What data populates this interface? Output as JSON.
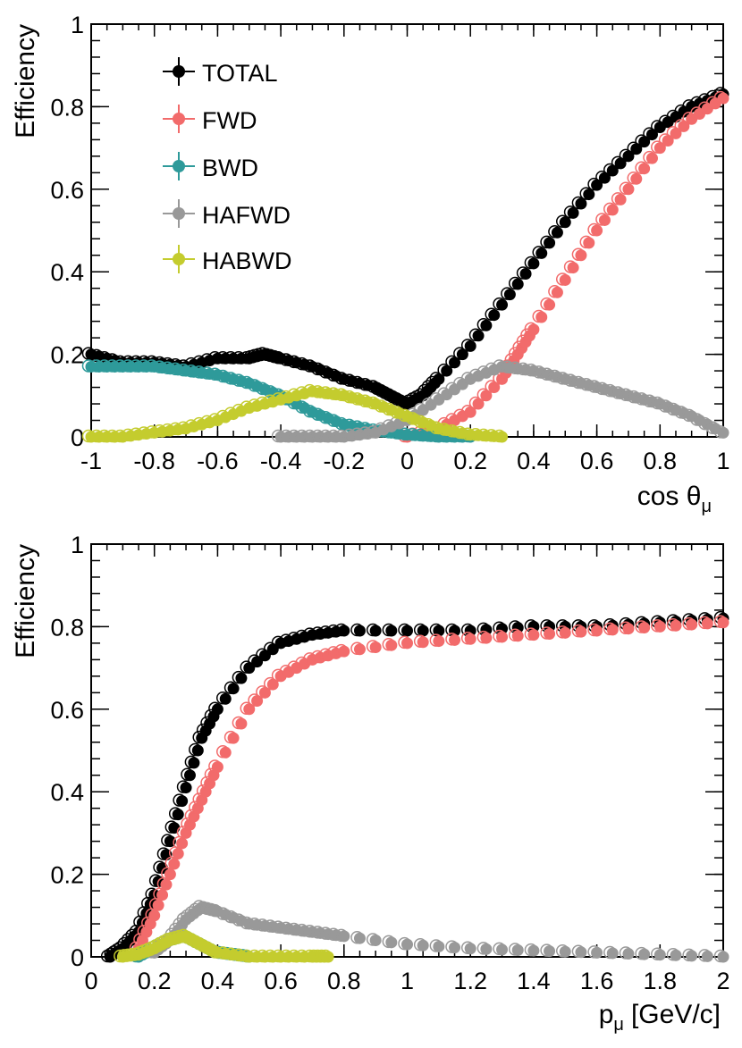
{
  "figure": {
    "colors": {
      "TOTAL": "#000000",
      "FWD": "#f26b6b",
      "BWD": "#2e9a9a",
      "HAFWD": "#999999",
      "HABWD": "#c4cc2e"
    }
  },
  "chart_data": [
    {
      "type": "scatter",
      "name": "efficiency-vs-cos-theta",
      "title": "",
      "xlabel_main": "cos θ",
      "xlabel_sub": "μ",
      "ylabel": "Efficiency",
      "xlim": [
        -1,
        1
      ],
      "ylim": [
        0,
        1
      ],
      "xticks": [
        -1,
        -0.8,
        -0.6,
        -0.4,
        -0.2,
        0,
        0.2,
        0.4,
        0.6,
        0.8,
        1
      ],
      "xtick_labels": [
        "-1",
        "-0.8",
        "-0.6",
        "-0.4",
        "-0.2",
        "0",
        "0.2",
        "0.4",
        "0.6",
        "0.8",
        "1"
      ],
      "yticks": [
        0,
        0.2,
        0.4,
        0.6,
        0.8,
        1
      ],
      "ytick_labels": [
        "0",
        "0.2",
        "0.4",
        "0.6",
        "0.8",
        "1"
      ],
      "legend_position": "top-left",
      "legend": [
        "TOTAL",
        "FWD",
        "BWD",
        "HAFWD",
        "HABWD"
      ],
      "series": [
        {
          "name": "TOTAL",
          "x": [
            -1.0,
            -0.9,
            -0.8,
            -0.7,
            -0.6,
            -0.5,
            -0.45,
            -0.4,
            -0.3,
            -0.2,
            -0.1,
            -0.05,
            0.0,
            0.05,
            0.1,
            0.2,
            0.3,
            0.4,
            0.5,
            0.6,
            0.7,
            0.8,
            0.9,
            1.0
          ],
          "y": [
            0.2,
            0.18,
            0.18,
            0.17,
            0.19,
            0.19,
            0.2,
            0.19,
            0.17,
            0.14,
            0.12,
            0.1,
            0.08,
            0.1,
            0.14,
            0.22,
            0.32,
            0.42,
            0.52,
            0.61,
            0.68,
            0.75,
            0.8,
            0.83
          ]
        },
        {
          "name": "FWD",
          "x": [
            0.0,
            0.1,
            0.2,
            0.3,
            0.35,
            0.4,
            0.5,
            0.6,
            0.7,
            0.8,
            0.9,
            1.0
          ],
          "y": [
            0.0,
            0.02,
            0.06,
            0.14,
            0.2,
            0.26,
            0.38,
            0.5,
            0.6,
            0.7,
            0.77,
            0.82
          ]
        },
        {
          "name": "BWD",
          "x": [
            -1.0,
            -0.9,
            -0.8,
            -0.7,
            -0.6,
            -0.5,
            -0.4,
            -0.3,
            -0.2,
            -0.1,
            0.0,
            0.1,
            0.2
          ],
          "y": [
            0.17,
            0.17,
            0.17,
            0.16,
            0.15,
            0.13,
            0.1,
            0.06,
            0.03,
            0.015,
            0.005,
            0.0,
            0.0
          ]
        },
        {
          "name": "HAFWD",
          "x": [
            -0.4,
            -0.3,
            -0.2,
            -0.1,
            0.0,
            0.1,
            0.2,
            0.3,
            0.4,
            0.5,
            0.6,
            0.7,
            0.8,
            0.9,
            1.0
          ],
          "y": [
            0.0,
            0.0,
            0.0,
            0.01,
            0.04,
            0.09,
            0.14,
            0.17,
            0.16,
            0.14,
            0.12,
            0.1,
            0.08,
            0.05,
            0.01
          ]
        },
        {
          "name": "HABWD",
          "x": [
            -1.0,
            -0.9,
            -0.8,
            -0.7,
            -0.6,
            -0.5,
            -0.4,
            -0.3,
            -0.2,
            -0.1,
            0.0,
            0.1,
            0.2,
            0.3
          ],
          "y": [
            0.0,
            0.0,
            0.01,
            0.02,
            0.04,
            0.07,
            0.09,
            0.11,
            0.1,
            0.08,
            0.05,
            0.02,
            0.005,
            0.0
          ]
        }
      ]
    },
    {
      "type": "scatter",
      "name": "efficiency-vs-momentum",
      "title": "",
      "xlabel_main": "p",
      "xlabel_sub": "μ",
      "xlabel_unit": "[GeV/c]",
      "ylabel": "Efficiency",
      "xlim": [
        0,
        2
      ],
      "ylim": [
        0,
        1
      ],
      "xticks": [
        0,
        0.2,
        0.4,
        0.6,
        0.8,
        1,
        1.2,
        1.4,
        1.6,
        1.8,
        2
      ],
      "xtick_labels": [
        "0",
        "0.2",
        "0.4",
        "0.6",
        "0.8",
        "1",
        "1.2",
        "1.4",
        "1.6",
        "1.8",
        "2"
      ],
      "yticks": [
        0,
        0.2,
        0.4,
        0.6,
        0.8,
        1
      ],
      "ytick_labels": [
        "0",
        "0.2",
        "0.4",
        "0.6",
        "0.8",
        "1"
      ],
      "series": [
        {
          "name": "TOTAL",
          "x": [
            0.06,
            0.1,
            0.15,
            0.2,
            0.25,
            0.3,
            0.35,
            0.4,
            0.5,
            0.6,
            0.7,
            0.8,
            1.0,
            1.2,
            1.4,
            1.6,
            1.8,
            2.0
          ],
          "y": [
            0.0,
            0.02,
            0.06,
            0.15,
            0.28,
            0.41,
            0.53,
            0.6,
            0.7,
            0.76,
            0.78,
            0.79,
            0.79,
            0.79,
            0.8,
            0.8,
            0.81,
            0.82
          ]
        },
        {
          "name": "FWD",
          "x": [
            0.15,
            0.2,
            0.25,
            0.3,
            0.35,
            0.4,
            0.5,
            0.6,
            0.7,
            0.8,
            1.0,
            1.2,
            1.4,
            1.6,
            1.8,
            2.0
          ],
          "y": [
            0.02,
            0.1,
            0.2,
            0.3,
            0.38,
            0.46,
            0.6,
            0.68,
            0.72,
            0.74,
            0.76,
            0.77,
            0.78,
            0.79,
            0.8,
            0.81
          ]
        },
        {
          "name": "BWD",
          "x": [
            0.15,
            0.2,
            0.25,
            0.3,
            0.35,
            0.4,
            0.45,
            0.5
          ],
          "y": [
            0.0,
            0.02,
            0.04,
            0.05,
            0.03,
            0.01,
            0.005,
            0.0
          ]
        },
        {
          "name": "HAFWD",
          "x": [
            0.2,
            0.25,
            0.3,
            0.35,
            0.4,
            0.5,
            0.6,
            0.7,
            0.8,
            1.0,
            1.2,
            1.4,
            1.6,
            1.8,
            2.0
          ],
          "y": [
            0.01,
            0.04,
            0.09,
            0.12,
            0.11,
            0.08,
            0.07,
            0.06,
            0.05,
            0.03,
            0.02,
            0.015,
            0.01,
            0.005,
            0.0
          ]
        },
        {
          "name": "HABWD",
          "x": [
            0.1,
            0.15,
            0.2,
            0.25,
            0.3,
            0.35,
            0.4,
            0.5,
            0.6,
            0.7,
            0.75
          ],
          "y": [
            0.0,
            0.005,
            0.02,
            0.04,
            0.05,
            0.03,
            0.01,
            0.0,
            0.0,
            0.0,
            0.0
          ]
        }
      ]
    }
  ]
}
